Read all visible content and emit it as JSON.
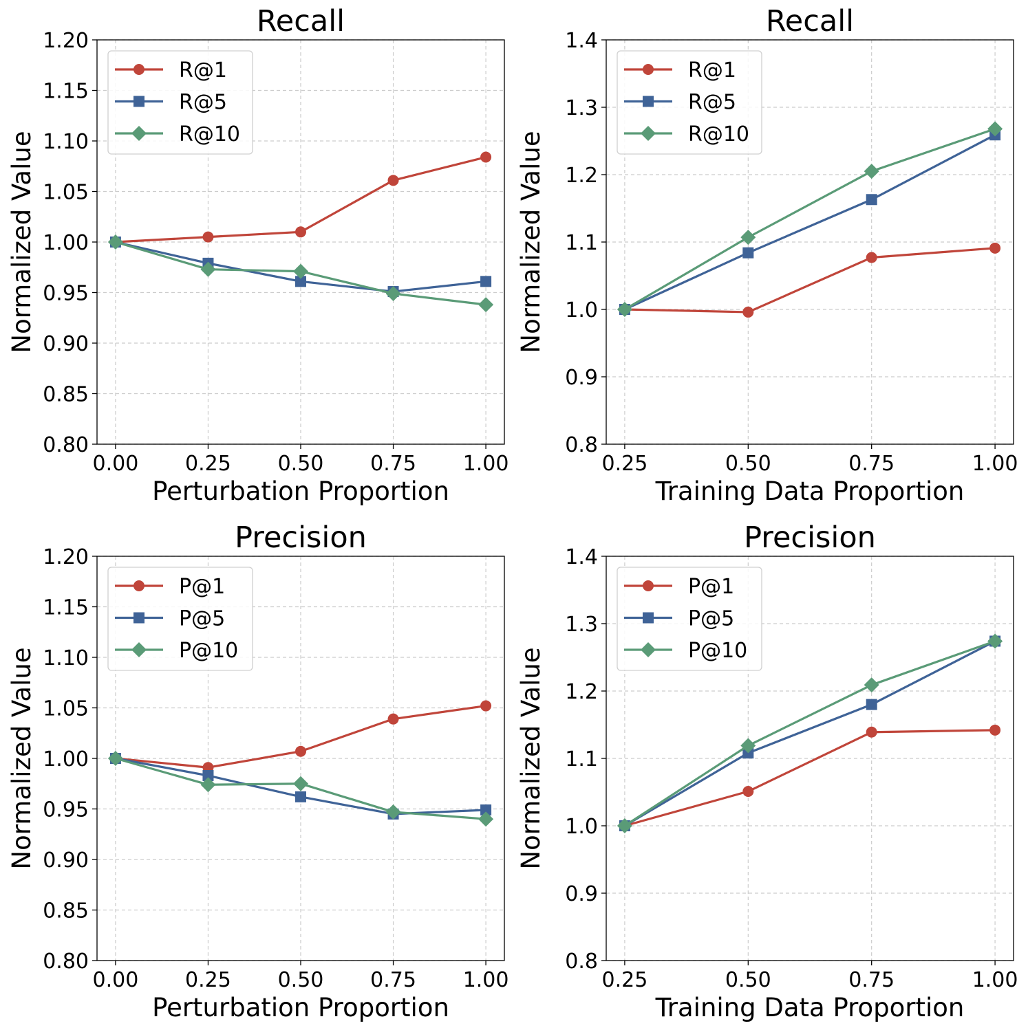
{
  "colors": {
    "red": "#c0453a",
    "blue": "#3f6397",
    "green": "#5a9b77",
    "grid": "#cccccc"
  },
  "chart_data": [
    {
      "type": "line",
      "title": "Recall",
      "xlabel": "Perturbation Proportion",
      "ylabel": "Normalized Value",
      "x": [
        0.0,
        0.25,
        0.5,
        0.75,
        1.0
      ],
      "xticks": [
        "0.00",
        "0.25",
        "0.50",
        "0.75",
        "1.00"
      ],
      "xlim": [
        -0.05,
        1.05
      ],
      "ylim": [
        0.8,
        1.2
      ],
      "yticks": [
        "0.80",
        "0.85",
        "0.90",
        "0.95",
        "1.00",
        "1.05",
        "1.10",
        "1.15",
        "1.20"
      ],
      "grid": true,
      "legend_position": "upper-left",
      "series": [
        {
          "name": "R@1",
          "marker": "circle",
          "color": "#c0453a",
          "values": [
            1.0,
            1.005,
            1.01,
            1.061,
            1.084
          ]
        },
        {
          "name": "R@5",
          "marker": "square",
          "color": "#3f6397",
          "values": [
            1.0,
            0.979,
            0.961,
            0.951,
            0.961
          ]
        },
        {
          "name": "R@10",
          "marker": "diamond",
          "color": "#5a9b77",
          "values": [
            1.0,
            0.973,
            0.971,
            0.949,
            0.938
          ]
        }
      ]
    },
    {
      "type": "line",
      "title": "Recall",
      "xlabel": "Training Data Proportion",
      "ylabel": "Normalized Value",
      "x": [
        0.25,
        0.5,
        0.75,
        1.0
      ],
      "xticks": [
        "0.25",
        "0.50",
        "0.75",
        "1.00"
      ],
      "xlim": [
        0.2125,
        1.0375
      ],
      "ylim": [
        0.8,
        1.4
      ],
      "yticks": [
        "0.8",
        "0.9",
        "1.0",
        "1.1",
        "1.2",
        "1.3",
        "1.4"
      ],
      "grid": true,
      "legend_position": "upper-left",
      "series": [
        {
          "name": "R@1",
          "marker": "circle",
          "color": "#c0453a",
          "values": [
            1.0,
            0.996,
            1.077,
            1.091
          ]
        },
        {
          "name": "R@5",
          "marker": "square",
          "color": "#3f6397",
          "values": [
            1.0,
            1.084,
            1.163,
            1.259
          ]
        },
        {
          "name": "R@10",
          "marker": "diamond",
          "color": "#5a9b77",
          "values": [
            1.0,
            1.107,
            1.205,
            1.268
          ]
        }
      ]
    },
    {
      "type": "line",
      "title": "Precision",
      "xlabel": "Perturbation Proportion",
      "ylabel": "Normalized Value",
      "x": [
        0.0,
        0.25,
        0.5,
        0.75,
        1.0
      ],
      "xticks": [
        "0.00",
        "0.25",
        "0.50",
        "0.75",
        "1.00"
      ],
      "xlim": [
        -0.05,
        1.05
      ],
      "ylim": [
        0.8,
        1.2
      ],
      "yticks": [
        "0.80",
        "0.85",
        "0.90",
        "0.95",
        "1.00",
        "1.05",
        "1.10",
        "1.15",
        "1.20"
      ],
      "grid": true,
      "legend_position": "upper-left",
      "series": [
        {
          "name": "P@1",
          "marker": "circle",
          "color": "#c0453a",
          "values": [
            1.0,
            0.991,
            1.007,
            1.039,
            1.052
          ]
        },
        {
          "name": "P@5",
          "marker": "square",
          "color": "#3f6397",
          "values": [
            1.0,
            0.983,
            0.962,
            0.945,
            0.949
          ]
        },
        {
          "name": "P@10",
          "marker": "diamond",
          "color": "#5a9b77",
          "values": [
            1.0,
            0.974,
            0.975,
            0.947,
            0.94
          ]
        }
      ]
    },
    {
      "type": "line",
      "title": "Precision",
      "xlabel": "Training Data Proportion",
      "ylabel": "Normalized Value",
      "x": [
        0.25,
        0.5,
        0.75,
        1.0
      ],
      "xticks": [
        "0.25",
        "0.50",
        "0.75",
        "1.00"
      ],
      "xlim": [
        0.2125,
        1.0375
      ],
      "ylim": [
        0.8,
        1.4
      ],
      "yticks": [
        "0.8",
        "0.9",
        "1.0",
        "1.1",
        "1.2",
        "1.3",
        "1.4"
      ],
      "grid": true,
      "legend_position": "upper-left",
      "series": [
        {
          "name": "P@1",
          "marker": "circle",
          "color": "#c0453a",
          "values": [
            1.0,
            1.051,
            1.139,
            1.142
          ]
        },
        {
          "name": "P@5",
          "marker": "square",
          "color": "#3f6397",
          "values": [
            1.0,
            1.108,
            1.18,
            1.274
          ]
        },
        {
          "name": "P@10",
          "marker": "diamond",
          "color": "#5a9b77",
          "values": [
            1.0,
            1.119,
            1.209,
            1.274
          ]
        }
      ]
    }
  ]
}
